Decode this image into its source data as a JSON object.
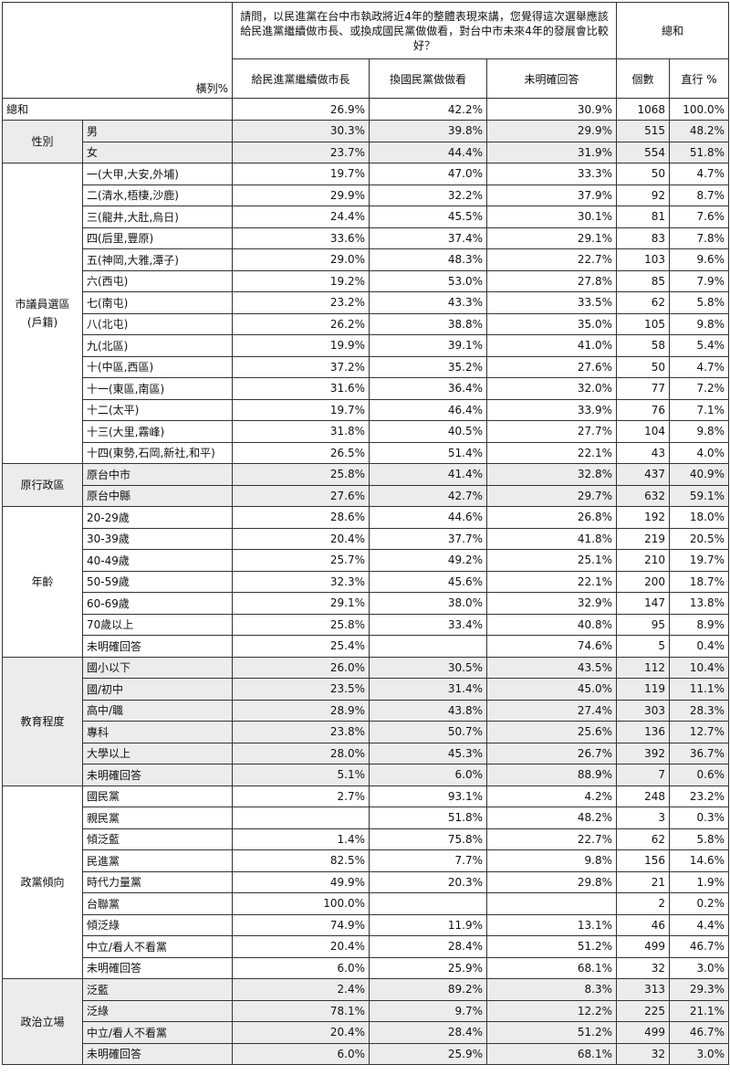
{
  "header": {
    "question": "請問，以民進黨在台中市執政將近4年的整體表現來講，您覺得這次選舉應該給民進黨繼續做市長、或換成國民黨做做看，對台中市未來4年的發展會比較好？",
    "row_pct_label": "橫列%",
    "total_label": "總和",
    "columns": [
      "給民進黨繼續做市長",
      "換國民黨做做看",
      "未明確回答",
      "個數",
      "直行 %"
    ]
  },
  "total_row": {
    "label": "總和",
    "values": [
      "26.9%",
      "42.2%",
      "30.9%",
      "1068",
      "100.0%"
    ]
  },
  "groups": [
    {
      "name": "性別",
      "rows": [
        {
          "label": "男",
          "values": [
            "30.3%",
            "39.8%",
            "29.9%",
            "515",
            "48.2%"
          ]
        },
        {
          "label": "女",
          "values": [
            "23.7%",
            "44.4%",
            "31.9%",
            "554",
            "51.8%"
          ]
        }
      ]
    },
    {
      "name": "市議員選區\n(戶籍)",
      "rows": [
        {
          "label": "一(大甲,大安,外埔)",
          "values": [
            "19.7%",
            "47.0%",
            "33.3%",
            "50",
            "4.7%"
          ]
        },
        {
          "label": "二(清水,梧棲,沙鹿)",
          "values": [
            "29.9%",
            "32.2%",
            "37.9%",
            "92",
            "8.7%"
          ]
        },
        {
          "label": "三(龍井,大肚,烏日)",
          "values": [
            "24.4%",
            "45.5%",
            "30.1%",
            "81",
            "7.6%"
          ]
        },
        {
          "label": "四(后里,豐原)",
          "values": [
            "33.6%",
            "37.4%",
            "29.1%",
            "83",
            "7.8%"
          ]
        },
        {
          "label": "五(神岡,大雅,潭子)",
          "values": [
            "29.0%",
            "48.3%",
            "22.7%",
            "103",
            "9.6%"
          ]
        },
        {
          "label": "六(西屯)",
          "values": [
            "19.2%",
            "53.0%",
            "27.8%",
            "85",
            "7.9%"
          ]
        },
        {
          "label": "七(南屯)",
          "values": [
            "23.2%",
            "43.3%",
            "33.5%",
            "62",
            "5.8%"
          ]
        },
        {
          "label": "八(北屯)",
          "values": [
            "26.2%",
            "38.8%",
            "35.0%",
            "105",
            "9.8%"
          ]
        },
        {
          "label": "九(北區)",
          "values": [
            "19.9%",
            "39.1%",
            "41.0%",
            "58",
            "5.4%"
          ]
        },
        {
          "label": "十(中區,西區)",
          "values": [
            "37.2%",
            "35.2%",
            "27.6%",
            "50",
            "4.7%"
          ]
        },
        {
          "label": "十一(東區,南區)",
          "values": [
            "31.6%",
            "36.4%",
            "32.0%",
            "77",
            "7.2%"
          ]
        },
        {
          "label": "十二(太平)",
          "values": [
            "19.7%",
            "46.4%",
            "33.9%",
            "76",
            "7.1%"
          ]
        },
        {
          "label": "十三(大里,霧峰)",
          "values": [
            "31.8%",
            "40.5%",
            "27.7%",
            "104",
            "9.8%"
          ]
        },
        {
          "label": "十四(東勢,石岡,新社,和平)",
          "values": [
            "26.5%",
            "51.4%",
            "22.1%",
            "43",
            "4.0%"
          ]
        }
      ]
    },
    {
      "name": "原行政區",
      "rows": [
        {
          "label": "原台中市",
          "values": [
            "25.8%",
            "41.4%",
            "32.8%",
            "437",
            "40.9%"
          ]
        },
        {
          "label": "原台中縣",
          "values": [
            "27.6%",
            "42.7%",
            "29.7%",
            "632",
            "59.1%"
          ]
        }
      ]
    },
    {
      "name": "年齡",
      "rows": [
        {
          "label": "20-29歲",
          "values": [
            "28.6%",
            "44.6%",
            "26.8%",
            "192",
            "18.0%"
          ]
        },
        {
          "label": "30-39歲",
          "values": [
            "20.4%",
            "37.7%",
            "41.8%",
            "219",
            "20.5%"
          ]
        },
        {
          "label": "40-49歲",
          "values": [
            "25.7%",
            "49.2%",
            "25.1%",
            "210",
            "19.7%"
          ]
        },
        {
          "label": "50-59歲",
          "values": [
            "32.3%",
            "45.6%",
            "22.1%",
            "200",
            "18.7%"
          ]
        },
        {
          "label": "60-69歲",
          "values": [
            "29.1%",
            "38.0%",
            "32.9%",
            "147",
            "13.8%"
          ]
        },
        {
          "label": "70歲以上",
          "values": [
            "25.8%",
            "33.4%",
            "40.8%",
            "95",
            "8.9%"
          ]
        },
        {
          "label": "未明確回答",
          "values": [
            "25.4%",
            "",
            "74.6%",
            "5",
            "0.4%"
          ]
        }
      ]
    },
    {
      "name": "教育程度",
      "rows": [
        {
          "label": "國小以下",
          "values": [
            "26.0%",
            "30.5%",
            "43.5%",
            "112",
            "10.4%"
          ]
        },
        {
          "label": "國/初中",
          "values": [
            "23.5%",
            "31.4%",
            "45.0%",
            "119",
            "11.1%"
          ]
        },
        {
          "label": "高中/職",
          "values": [
            "28.9%",
            "43.8%",
            "27.4%",
            "303",
            "28.3%"
          ]
        },
        {
          "label": "專科",
          "values": [
            "23.8%",
            "50.7%",
            "25.6%",
            "136",
            "12.7%"
          ]
        },
        {
          "label": "大學以上",
          "values": [
            "28.0%",
            "45.3%",
            "26.7%",
            "392",
            "36.7%"
          ]
        },
        {
          "label": "未明確回答",
          "values": [
            "5.1%",
            "6.0%",
            "88.9%",
            "7",
            "0.6%"
          ]
        }
      ]
    },
    {
      "name": "政黨傾向",
      "rows": [
        {
          "label": "國民黨",
          "values": [
            "2.7%",
            "93.1%",
            "4.2%",
            "248",
            "23.2%"
          ]
        },
        {
          "label": "親民黨",
          "values": [
            "",
            "51.8%",
            "48.2%",
            "3",
            "0.3%"
          ]
        },
        {
          "label": "傾泛藍",
          "values": [
            "1.4%",
            "75.8%",
            "22.7%",
            "62",
            "5.8%"
          ]
        },
        {
          "label": "民進黨",
          "values": [
            "82.5%",
            "7.7%",
            "9.8%",
            "156",
            "14.6%"
          ]
        },
        {
          "label": "時代力量黨",
          "values": [
            "49.9%",
            "20.3%",
            "29.8%",
            "21",
            "1.9%"
          ]
        },
        {
          "label": "台聯黨",
          "values": [
            "100.0%",
            "",
            "",
            "2",
            "0.2%"
          ]
        },
        {
          "label": "傾泛綠",
          "values": [
            "74.9%",
            "11.9%",
            "13.1%",
            "46",
            "4.4%"
          ]
        },
        {
          "label": "中立/看人不看黨",
          "values": [
            "20.4%",
            "28.4%",
            "51.2%",
            "499",
            "46.7%"
          ]
        },
        {
          "label": "未明確回答",
          "values": [
            "6.0%",
            "25.9%",
            "68.1%",
            "32",
            "3.0%"
          ]
        }
      ]
    },
    {
      "name": "政治立場",
      "rows": [
        {
          "label": "泛藍",
          "values": [
            "2.4%",
            "89.2%",
            "8.3%",
            "313",
            "29.3%"
          ]
        },
        {
          "label": "泛綠",
          "values": [
            "78.1%",
            "9.7%",
            "12.2%",
            "225",
            "21.1%"
          ]
        },
        {
          "label": "中立/看人不看黨",
          "values": [
            "20.4%",
            "28.4%",
            "51.2%",
            "499",
            "46.7%"
          ]
        },
        {
          "label": "未明確回答",
          "values": [
            "6.0%",
            "25.9%",
            "68.1%",
            "32",
            "3.0%"
          ]
        }
      ]
    }
  ]
}
